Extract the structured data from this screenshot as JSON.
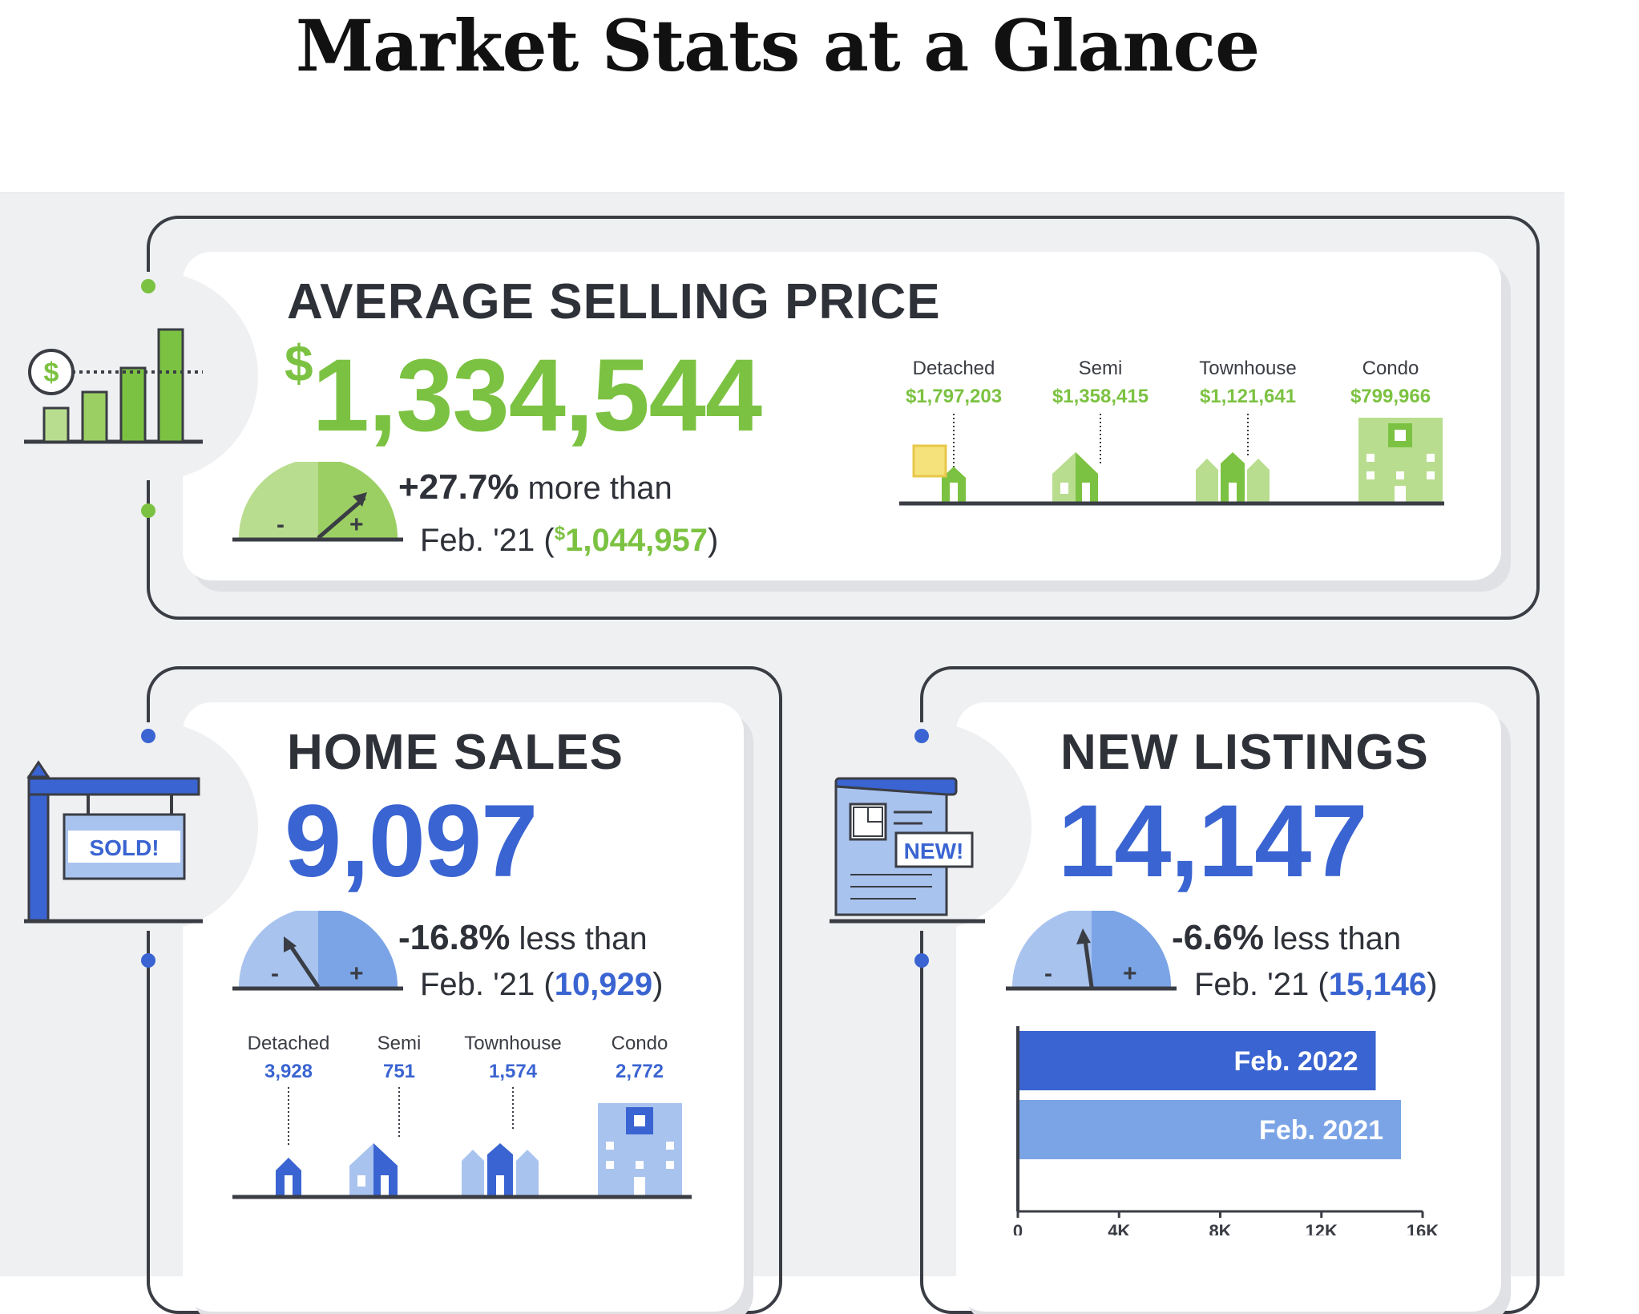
{
  "page": {
    "title": "Market Stats at a Glance"
  },
  "avg_price": {
    "heading": "AVERAGE SELLING PRICE",
    "currency": "$",
    "value": "1,334,544",
    "change": "+27.7%",
    "change_text": "more than",
    "compare_prefix": "Feb. '21 (",
    "compare_currency": "$",
    "compare_value": "1,044,957",
    "compare_suffix": ")",
    "icon_symbol": "$",
    "gauge_minus": "-",
    "gauge_plus": "+",
    "types": [
      {
        "label": "Detached",
        "value": "$1,797,203"
      },
      {
        "label": "Semi",
        "value": "$1,358,415"
      },
      {
        "label": "Townhouse",
        "value": "$1,121,641"
      },
      {
        "label": "Condo",
        "value": "$799,966"
      }
    ]
  },
  "home_sales": {
    "heading": "HOME SALES",
    "value": "9,097",
    "change": "-16.8%",
    "change_text": "less than",
    "compare_prefix": "Feb. '21 (",
    "compare_value": "10,929",
    "compare_suffix": ")",
    "sign_text": "SOLD!",
    "gauge_minus": "-",
    "gauge_plus": "+",
    "types": [
      {
        "label": "Detached",
        "value": "3,928"
      },
      {
        "label": "Semi",
        "value": "751"
      },
      {
        "label": "Townhouse",
        "value": "1,574"
      },
      {
        "label": "Condo",
        "value": "2,772"
      }
    ]
  },
  "new_listings": {
    "heading": "NEW LISTINGS",
    "value": "14,147",
    "change": "-6.6%",
    "change_text": "less than",
    "compare_prefix": "Feb. '21 (",
    "compare_value": "15,146",
    "compare_suffix": ")",
    "badge_text": "NEW!",
    "gauge_minus": "-",
    "gauge_plus": "+"
  },
  "colors": {
    "green": "#7cc242",
    "green_light": "#b9dd8f",
    "green_mid": "#9ccf63",
    "blue": "#3a64d1",
    "blue_light": "#7ba4e6",
    "blue_pale": "#a9c3ef",
    "dark": "#2e3138"
  },
  "chart_data": {
    "type": "bar",
    "orientation": "horizontal",
    "categories": [
      "Feb. 2022",
      "Feb. 2021"
    ],
    "values": [
      14147,
      15146
    ],
    "xlim": [
      0,
      16000
    ],
    "xticks": [
      "0",
      "4K",
      "8K",
      "12K",
      "16K"
    ],
    "xtick_values": [
      0,
      4000,
      8000,
      12000,
      16000
    ],
    "colors": [
      "#3a64d1",
      "#7ba4e6"
    ]
  }
}
